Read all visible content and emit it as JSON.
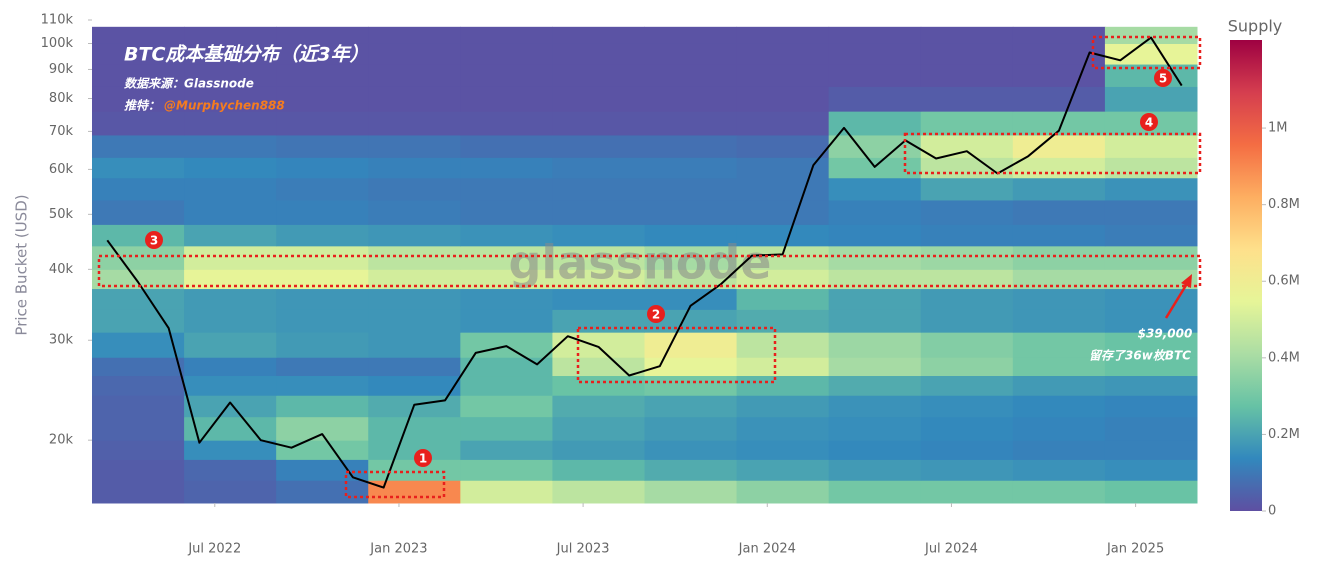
{
  "chart_data": {
    "type": "heatmap",
    "y_label": "Price Bucket (USD)",
    "colorbar_title": "Supply",
    "log_y": true,
    "ylim": [
      15500,
      110000
    ],
    "yticks": [
      {
        "value": 20000,
        "label": "20k"
      },
      {
        "value": 30000,
        "label": "30k"
      },
      {
        "value": 40000,
        "label": "40k"
      },
      {
        "value": 50000,
        "label": "50k"
      },
      {
        "value": 60000,
        "label": "60k"
      },
      {
        "value": 70000,
        "label": "70k"
      },
      {
        "value": 80000,
        "label": "80k"
      },
      {
        "value": 90000,
        "label": "90k"
      },
      {
        "value": 100000,
        "label": "100k"
      },
      {
        "value": 110000,
        "label": "110k"
      }
    ],
    "xticks": [
      "Jul 2022",
      "Jan 2023",
      "Jul 2023",
      "Jan 2024",
      "Jul 2024",
      "Jan 2025"
    ],
    "zlim": [
      0,
      1230000
    ],
    "zticks": [
      0,
      {
        "value": 200000,
        "label": "0.2M"
      },
      {
        "value": 400000,
        "label": "0.4M"
      },
      {
        "value": 600000,
        "label": "0.6M"
      },
      {
        "value": 800000,
        "label": "0.8M"
      },
      {
        "value": 1000000,
        "label": "1M"
      }
    ],
    "colorscale": [
      "#5e4fa2",
      "#3288bd",
      "#66c2a5",
      "#abdda4",
      "#e6f598",
      "#fee08b",
      "#fdae61",
      "#f46d43",
      "#d53e4f",
      "#9e0142"
    ],
    "heat_x": [
      "Mar 2022",
      "Jun 2022",
      "Sep 2022",
      "Dec 2022",
      "Mar 2023",
      "Jun 2023",
      "Sep 2023",
      "Dec 2023",
      "Mar 2024",
      "Jun 2024",
      "Sep 2024",
      "Dec 2024"
    ],
    "y_bins": [
      15500,
      17000,
      18500,
      20000,
      22000,
      24000,
      26000,
      28000,
      31000,
      34000,
      37000,
      40000,
      44000,
      48000,
      53000,
      58000,
      63000,
      69000,
      76000,
      84000,
      92000,
      100000,
      107000
    ],
    "z": [
      [
        30000,
        50000,
        80000,
        900000,
        500000,
        450000,
        400000,
        350000,
        300000,
        300000,
        300000,
        280000
      ],
      [
        30000,
        60000,
        120000,
        300000,
        300000,
        250000,
        220000,
        200000,
        180000,
        170000,
        160000,
        150000
      ],
      [
        40000,
        150000,
        300000,
        250000,
        200000,
        180000,
        160000,
        150000,
        140000,
        130000,
        120000,
        120000
      ],
      [
        50000,
        250000,
        350000,
        250000,
        250000,
        200000,
        180000,
        160000,
        150000,
        140000,
        130000,
        120000
      ],
      [
        50000,
        200000,
        250000,
        220000,
        300000,
        220000,
        200000,
        180000,
        160000,
        150000,
        140000,
        130000
      ],
      [
        60000,
        150000,
        150000,
        140000,
        250000,
        280000,
        300000,
        250000,
        220000,
        200000,
        180000,
        170000
      ],
      [
        80000,
        120000,
        100000,
        100000,
        250000,
        450000,
        550000,
        500000,
        400000,
        350000,
        300000,
        280000
      ],
      [
        150000,
        200000,
        180000,
        170000,
        300000,
        500000,
        600000,
        450000,
        380000,
        330000,
        300000,
        280000
      ],
      [
        200000,
        180000,
        170000,
        170000,
        160000,
        200000,
        200000,
        220000,
        200000,
        180000,
        170000,
        160000
      ],
      [
        200000,
        180000,
        170000,
        170000,
        160000,
        150000,
        150000,
        250000,
        200000,
        180000,
        170000,
        160000
      ],
      [
        400000,
        550000,
        550000,
        500000,
        500000,
        500000,
        450000,
        500000,
        450000,
        450000,
        400000,
        400000
      ],
      [
        350000,
        500000,
        500000,
        450000,
        450000,
        450000,
        400000,
        450000,
        400000,
        380000,
        350000,
        350000
      ],
      [
        250000,
        200000,
        180000,
        170000,
        160000,
        150000,
        140000,
        140000,
        130000,
        120000,
        120000,
        110000
      ],
      [
        100000,
        120000,
        120000,
        110000,
        100000,
        100000,
        100000,
        100000,
        120000,
        110000,
        100000,
        100000
      ],
      [
        120000,
        120000,
        110000,
        100000,
        100000,
        100000,
        100000,
        100000,
        150000,
        200000,
        180000,
        160000
      ],
      [
        150000,
        140000,
        130000,
        120000,
        120000,
        110000,
        110000,
        100000,
        300000,
        450000,
        500000,
        450000
      ],
      [
        100000,
        100000,
        90000,
        90000,
        80000,
        80000,
        80000,
        70000,
        350000,
        500000,
        600000,
        500000
      ],
      [
        20000,
        20000,
        20000,
        20000,
        20000,
        20000,
        20000,
        20000,
        250000,
        300000,
        300000,
        300000
      ],
      [
        10000,
        10000,
        10000,
        10000,
        10000,
        10000,
        10000,
        10000,
        30000,
        30000,
        30000,
        200000
      ],
      [
        10000,
        10000,
        10000,
        10000,
        10000,
        10000,
        10000,
        10000,
        10000,
        10000,
        10000,
        250000
      ],
      [
        10000,
        10000,
        10000,
        10000,
        10000,
        10000,
        10000,
        10000,
        10000,
        10000,
        10000,
        550000
      ],
      [
        10000,
        10000,
        10000,
        10000,
        10000,
        10000,
        10000,
        10000,
        10000,
        10000,
        10000,
        400000
      ]
    ],
    "line": {
      "color": "#000000",
      "x": [
        "Mar 2022",
        "Apr 2022",
        "May 2022",
        "Jun 2022",
        "Jul 2022",
        "Aug 2022",
        "Sep 2022",
        "Oct 2022",
        "Nov 2022",
        "Dec 2022",
        "Jan 2023",
        "Feb 2023",
        "Mar 2023",
        "Apr 2023",
        "May 2023",
        "Jun 2023",
        "Jul 2023",
        "Aug 2023",
        "Sep 2023",
        "Oct 2023",
        "Nov 2023",
        "Dec 2023",
        "Jan 2024",
        "Feb 2024",
        "Mar 2024",
        "Apr 2024",
        "May 2024",
        "Jun 2024",
        "Jul 2024",
        "Aug 2024",
        "Sep 2024",
        "Oct 2024",
        "Nov 2024",
        "Dec 2024",
        "Jan 2025",
        "Feb 2025"
      ],
      "values": [
        45000,
        38000,
        31500,
        19800,
        23300,
        20000,
        19400,
        20500,
        17200,
        16500,
        23100,
        23500,
        28500,
        29300,
        27200,
        30500,
        29200,
        26000,
        27000,
        34500,
        37700,
        42300,
        42500,
        61000,
        71000,
        60600,
        67500,
        62700,
        64600,
        59000,
        63300,
        70200,
        96400,
        93400,
        102400,
        84300
      ]
    },
    "title": "BTC成本基础分布（近3年）",
    "source": "数据来源：Glassnode",
    "twitter_prefix": "推特：",
    "twitter_handle": "@Murphychen888",
    "watermark": "glassnode",
    "markers": [
      "1",
      "2",
      "3",
      "4",
      "5"
    ],
    "callout_price": "$39,000",
    "callout_text": "留存了36w枚BTC"
  }
}
